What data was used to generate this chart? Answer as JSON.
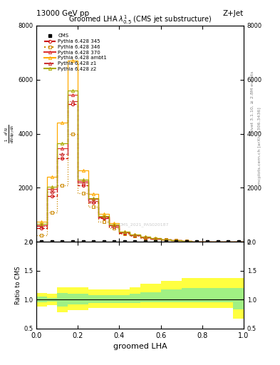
{
  "title_top": "13000 GeV pp",
  "title_right": "Z+Jet",
  "plot_title": "Groomed LHA $\\lambda^{1}_{0.5}$ (CMS jet substructure)",
  "xlabel": "groomed LHA",
  "ylabel_ratio": "Ratio to CMS",
  "right_label1": "Rivet 3.1.10, ≥ 2.8M events",
  "right_label2": "mcplots.cern.ch [arXiv:1306.3436]",
  "watermark": "CMS_2021_PAS020187",
  "x_bins": [
    0.0,
    0.05,
    0.1,
    0.15,
    0.2,
    0.25,
    0.3,
    0.35,
    0.4,
    0.45,
    0.5,
    0.55,
    0.6,
    0.65,
    0.7,
    0.75,
    0.8,
    0.85,
    0.9,
    0.95,
    1.0
  ],
  "series": [
    {
      "label": "Pythia 6.428 345",
      "color": "#cc0000",
      "linestyle": "dashed",
      "marker": "o",
      "markersize": 3,
      "fillstyle": "none",
      "y": [
        500,
        1700,
        3100,
        5100,
        2100,
        1450,
        870,
        570,
        330,
        235,
        165,
        118,
        82,
        54,
        27,
        13,
        7,
        3.5,
        1.8,
        0.9
      ]
    },
    {
      "label": "Pythia 6.428 346",
      "color": "#cc8800",
      "linestyle": "dotted",
      "marker": "s",
      "markersize": 3,
      "fillstyle": "none",
      "y": [
        250,
        1100,
        2100,
        4000,
        1800,
        1300,
        760,
        520,
        300,
        215,
        152,
        110,
        78,
        51,
        26,
        12,
        6.5,
        3.0,
        1.4,
        0.7
      ]
    },
    {
      "label": "Pythia 6.428 370",
      "color": "#dd3333",
      "linestyle": "solid",
      "marker": "^",
      "markersize": 3,
      "fillstyle": "none",
      "y": [
        620,
        1950,
        3450,
        5450,
        2250,
        1580,
        930,
        620,
        355,
        252,
        180,
        128,
        88,
        59,
        30,
        15,
        8.5,
        4.2,
        2.1,
        1.0
      ]
    },
    {
      "label": "Pythia 6.428 ambt1",
      "color": "#ffaa00",
      "linestyle": "solid",
      "marker": "^",
      "markersize": 3,
      "fillstyle": "none",
      "y": [
        750,
        2400,
        4400,
        6700,
        2650,
        1780,
        1030,
        685,
        388,
        272,
        194,
        140,
        97,
        65,
        33,
        17,
        9.5,
        4.8,
        2.4,
        1.1
      ]
    },
    {
      "label": "Pythia 6.428 z1",
      "color": "#cc3333",
      "linestyle": "dashdot",
      "marker": "^",
      "markersize": 3,
      "fillstyle": "none",
      "y": [
        580,
        1850,
        3250,
        5200,
        2200,
        1520,
        900,
        605,
        344,
        246,
        175,
        126,
        88,
        59,
        30,
        14.8,
        8.2,
        4.0,
        2.0,
        0.95
      ]
    },
    {
      "label": "Pythia 6.428 z2",
      "color": "#aaaa00",
      "linestyle": "solid",
      "marker": "^",
      "markersize": 3,
      "fillstyle": "none",
      "y": [
        660,
        2050,
        3650,
        5600,
        2310,
        1630,
        955,
        640,
        367,
        261,
        186,
        133,
        92,
        62,
        32,
        16,
        8.8,
        4.4,
        2.2,
        1.0
      ]
    }
  ],
  "ratio_yellow_lo": [
    0.88,
    0.9,
    0.78,
    0.82,
    0.82,
    0.86,
    0.86,
    0.86,
    0.86,
    0.86,
    0.86,
    0.86,
    0.86,
    0.86,
    0.86,
    0.86,
    0.86,
    0.86,
    0.86,
    0.67
  ],
  "ratio_yellow_hi": [
    1.12,
    1.1,
    1.22,
    1.22,
    1.22,
    1.18,
    1.18,
    1.18,
    1.18,
    1.22,
    1.28,
    1.28,
    1.33,
    1.33,
    1.38,
    1.38,
    1.38,
    1.38,
    1.38,
    1.38
  ],
  "ratio_green_lo": [
    0.95,
    0.97,
    0.88,
    0.92,
    0.92,
    0.94,
    0.94,
    0.94,
    0.94,
    0.94,
    0.95,
    0.95,
    0.95,
    0.95,
    0.95,
    0.95,
    0.95,
    0.95,
    0.95,
    0.83
  ],
  "ratio_green_hi": [
    1.05,
    1.03,
    1.12,
    1.1,
    1.1,
    1.08,
    1.08,
    1.08,
    1.08,
    1.1,
    1.13,
    1.13,
    1.18,
    1.18,
    1.2,
    1.2,
    1.2,
    1.2,
    1.2,
    1.2
  ],
  "ylim_main": [
    0,
    8000
  ],
  "ylim_ratio": [
    0.5,
    2.0
  ],
  "yticks_main": [
    0,
    2000,
    4000,
    6000,
    8000
  ],
  "yticks_ratio": [
    0.5,
    1.0,
    1.5,
    2.0
  ],
  "background_color": "#ffffff"
}
